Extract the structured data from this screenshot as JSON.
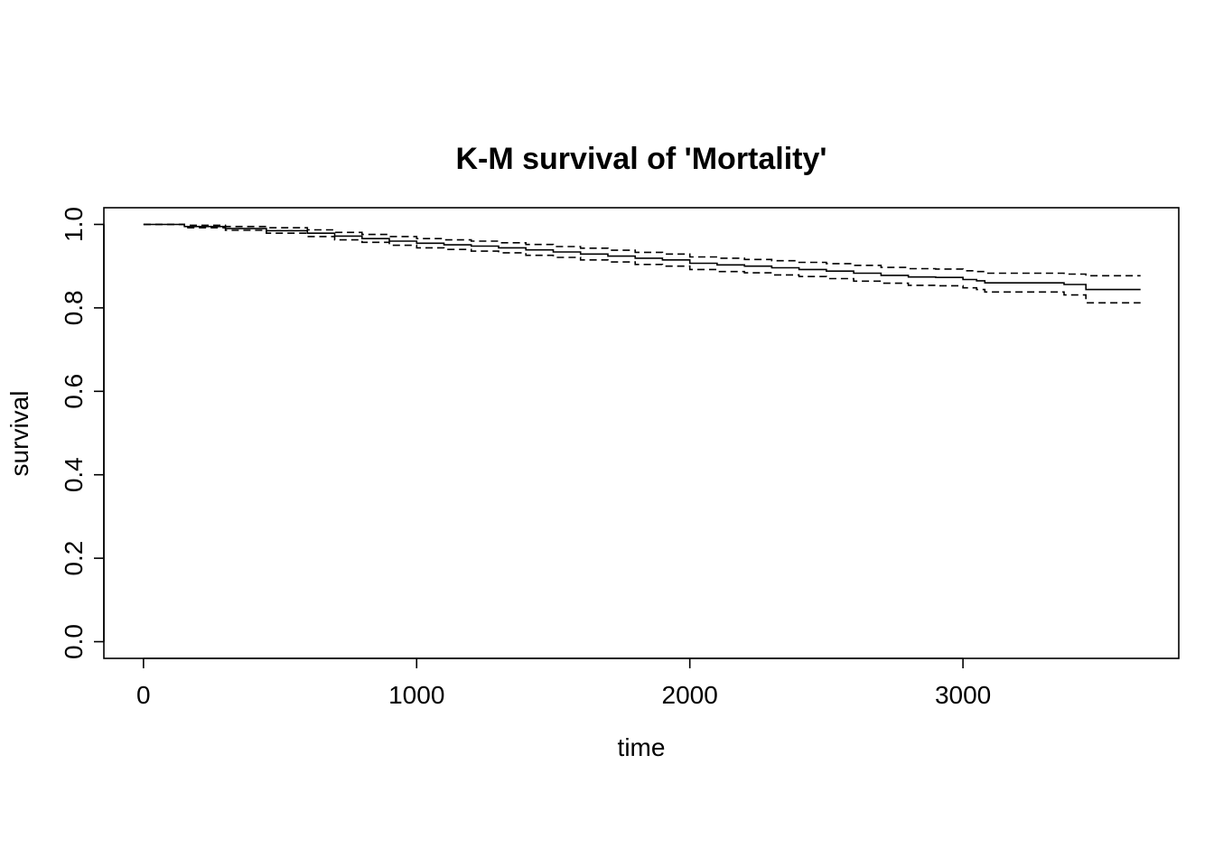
{
  "chart_data": {
    "type": "line",
    "title": "K-M survival of 'Mortality'",
    "xlabel": "time",
    "ylabel": "survival",
    "xlim": [
      -145,
      3790
    ],
    "ylim": [
      -0.04,
      1.04
    ],
    "xticks": [
      0,
      1000,
      2000,
      3000
    ],
    "xtick_labels": [
      "0",
      "1000",
      "2000",
      "3000"
    ],
    "yticks": [
      0.0,
      0.2,
      0.4,
      0.6,
      0.8,
      1.0
    ],
    "ytick_labels": [
      "0.0",
      "0.2",
      "0.4",
      "0.6",
      "0.8",
      "1.0"
    ],
    "grid": false,
    "legend": "none",
    "step": true,
    "series": [
      {
        "style": "solid",
        "x": [
          0,
          150,
          300,
          450,
          600,
          700,
          800,
          900,
          1000,
          1100,
          1200,
          1300,
          1400,
          1500,
          1600,
          1700,
          1800,
          1900,
          2000,
          2100,
          2200,
          2300,
          2400,
          2500,
          2600,
          2700,
          2800,
          2900,
          3000,
          3050,
          3080,
          3200,
          3300,
          3370,
          3450,
          3650
        ],
        "y": [
          1.0,
          0.995,
          0.99,
          0.985,
          0.979,
          0.972,
          0.966,
          0.96,
          0.955,
          0.951,
          0.948,
          0.944,
          0.939,
          0.934,
          0.929,
          0.924,
          0.919,
          0.915,
          0.907,
          0.903,
          0.9,
          0.896,
          0.892,
          0.888,
          0.883,
          0.878,
          0.874,
          0.873,
          0.868,
          0.865,
          0.86,
          0.86,
          0.86,
          0.856,
          0.844,
          0.844
        ]
      },
      {
        "style": "dashed",
        "x": [
          0,
          150,
          300,
          450,
          600,
          700,
          800,
          900,
          1000,
          1100,
          1200,
          1300,
          1400,
          1500,
          1600,
          1700,
          1800,
          1900,
          2000,
          2100,
          2200,
          2300,
          2400,
          2500,
          2600,
          2700,
          2800,
          2900,
          3000,
          3050,
          3080,
          3200,
          3300,
          3370,
          3450,
          3650
        ],
        "y": [
          1.0,
          0.998,
          0.995,
          0.992,
          0.987,
          0.981,
          0.976,
          0.971,
          0.966,
          0.963,
          0.96,
          0.956,
          0.952,
          0.947,
          0.943,
          0.938,
          0.933,
          0.929,
          0.922,
          0.919,
          0.916,
          0.913,
          0.909,
          0.906,
          0.902,
          0.897,
          0.894,
          0.893,
          0.889,
          0.887,
          0.883,
          0.883,
          0.883,
          0.881,
          0.877,
          0.877
        ]
      },
      {
        "style": "dashed",
        "x": [
          0,
          150,
          300,
          450,
          600,
          700,
          800,
          900,
          1000,
          1100,
          1200,
          1300,
          1400,
          1500,
          1600,
          1700,
          1800,
          1900,
          2000,
          2100,
          2200,
          2300,
          2400,
          2500,
          2600,
          2700,
          2800,
          2900,
          3000,
          3050,
          3080,
          3200,
          3300,
          3370,
          3450,
          3650
        ],
        "y": [
          1.0,
          0.992,
          0.986,
          0.979,
          0.971,
          0.963,
          0.957,
          0.95,
          0.944,
          0.94,
          0.936,
          0.932,
          0.926,
          0.921,
          0.915,
          0.91,
          0.904,
          0.9,
          0.892,
          0.887,
          0.884,
          0.879,
          0.875,
          0.87,
          0.864,
          0.859,
          0.854,
          0.853,
          0.848,
          0.844,
          0.838,
          0.838,
          0.838,
          0.831,
          0.812,
          0.812
        ]
      }
    ]
  }
}
